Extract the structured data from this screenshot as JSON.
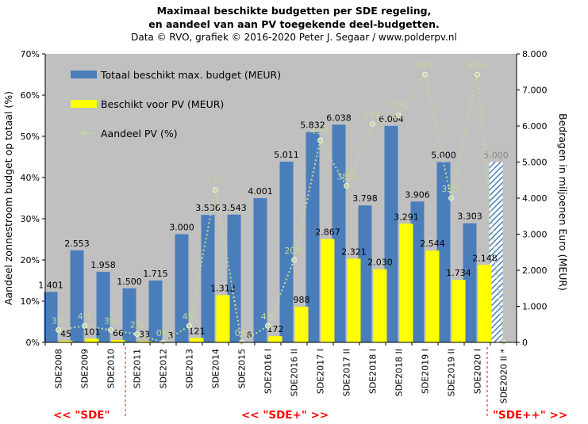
{
  "title_lines": [
    "Maximaal beschikte budgetten per SDE regeling,",
    "en aandeel van aan PV toegekende deel-budgetten.",
    "Data © RVO, grafiek © 2016-2020 Peter J. Segaar / www.polderpv.nl"
  ],
  "era_labels": [
    "<<  \"SDE\"",
    "<<    \"SDE+\"    >>",
    "\"SDE++\"  >>"
  ],
  "colors": {
    "plot_bg": "#c0c0c0",
    "bar_total": "#4a7ebb",
    "bar_pv": "#ffff00",
    "pv_line": "#c3d69b",
    "hatch": "#4a7ebb",
    "era_red": "#ff0000"
  },
  "chart_data": {
    "type": "bar",
    "categories": [
      "SDE2008",
      "SDE2009",
      "SDE2010",
      "SDE2011",
      "SDE2012",
      "SDE2013",
      "SDE2014",
      "SDE2015",
      "SDE2016 I",
      "SDE2016 II",
      "SDE2017 I",
      "SDE2017 II",
      "SDE2018 I",
      "SDE2018 II",
      "SDE2019 I",
      "SDE2019 II",
      "SDE2020 I",
      "SDE2020 II *"
    ],
    "series": [
      {
        "name": "Totaal beschikt max. budget (MEUR)",
        "axis": "right",
        "values": [
          1401,
          2553,
          1958,
          1500,
          1715,
          3000,
          3536,
          3543,
          4001,
          5011,
          5832,
          6038,
          3798,
          6004,
          3906,
          5000,
          3303,
          5000
        ],
        "labels": [
          "1.401",
          "2.553",
          "1.958",
          "1.500",
          "1.715",
          "3.000",
          "3.536",
          "3.543",
          "4.001",
          "5.011",
          "5.832",
          "6.038",
          "3.798",
          "6.004",
          "3.906",
          "5.000",
          "3.303",
          "5.000"
        ],
        "hatched_index": 17
      },
      {
        "name": "Beschikt voor PV (MEUR)",
        "axis": "right",
        "values": [
          45,
          101,
          66,
          33,
          3,
          121,
          1312,
          6,
          172,
          988,
          2867,
          2321,
          2030,
          3291,
          2544,
          1734,
          2148,
          0
        ],
        "labels": [
          "45",
          "101",
          "66",
          "33",
          "3",
          "121",
          "1.312",
          "6",
          "172",
          "988",
          "2.867",
          "2.321",
          "2.030",
          "3.291",
          "2.544",
          "1.734",
          "2.148",
          ""
        ]
      },
      {
        "name": "Aandeel PV (%)",
        "axis": "left",
        "type": "line",
        "values": [
          3,
          4,
          3,
          2,
          0,
          4,
          37,
          0,
          4,
          20,
          49,
          38,
          53,
          55,
          65,
          35,
          65,
          0
        ],
        "labels": [
          "3%",
          "4%",
          "3%",
          "2%",
          "0%",
          "4%",
          "37%",
          "0%",
          "4%",
          "20%",
          "49%",
          "38%",
          "53%",
          "55%",
          "65%",
          "35%",
          "65%",
          ""
        ]
      }
    ],
    "ylabel": "Aandeel zonnestroom budget op totaal (%)",
    "y2label": "Bedragen in miljoenen  Euro  (MEUR)",
    "ylim": [
      0,
      70
    ],
    "y2lim": [
      0,
      8000
    ],
    "yticks": [
      "0%",
      "10%",
      "20%",
      "30%",
      "40%",
      "50%",
      "60%",
      "70%"
    ],
    "y2ticks": [
      "0",
      "1.000",
      "2.000",
      "3.000",
      "4.000",
      "5.000",
      "6.000",
      "7.000",
      "8.000"
    ],
    "grid": false,
    "legend_position": "top-left"
  }
}
